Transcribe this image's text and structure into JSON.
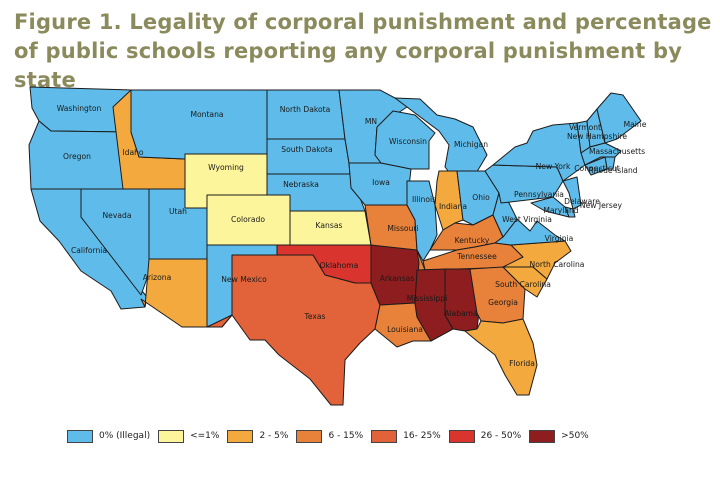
{
  "title": "Figure 1. Legality of corporal punishment and percentage of public schools reporting any corporal punishment by state",
  "legend": [
    {
      "key": "0",
      "label": "0% (Illegal)",
      "color": "#5fbcea"
    },
    {
      "key": "1",
      "label": "<=1%",
      "color": "#fdf59c"
    },
    {
      "key": "2",
      "label": "2 - 5%",
      "color": "#f3a93e"
    },
    {
      "key": "3",
      "label": "6 - 15%",
      "color": "#e8823a"
    },
    {
      "key": "4",
      "label": "16- 25%",
      "color": "#e2633a"
    },
    {
      "key": "5",
      "label": "26 - 50%",
      "color": "#d9342e"
    },
    {
      "key": "6",
      "label": ">50%",
      "color": "#8e1d1f"
    }
  ],
  "states": [
    {
      "id": "WA",
      "label": "Washington",
      "cat": "0"
    },
    {
      "id": "OR",
      "label": "Oregon",
      "cat": "0"
    },
    {
      "id": "CA",
      "label": "California",
      "cat": "0"
    },
    {
      "id": "NV",
      "label": "Nevada",
      "cat": "0"
    },
    {
      "id": "ID",
      "label": "Idaho",
      "cat": "2"
    },
    {
      "id": "MT",
      "label": "Montana",
      "cat": "0"
    },
    {
      "id": "WY",
      "label": "Wyoming",
      "cat": "1"
    },
    {
      "id": "UT",
      "label": "Utah",
      "cat": "0"
    },
    {
      "id": "CO",
      "label": "Colorado",
      "cat": "1"
    },
    {
      "id": "AZ",
      "label": "Arizona",
      "cat": "2"
    },
    {
      "id": "NM",
      "label": "New Mexico",
      "cat": "0"
    },
    {
      "id": "ND",
      "label": "North Dakota",
      "cat": "0"
    },
    {
      "id": "SD",
      "label": "South Dakota",
      "cat": "0"
    },
    {
      "id": "NE",
      "label": "Nebraska",
      "cat": "0"
    },
    {
      "id": "KS",
      "label": "Kansas",
      "cat": "1"
    },
    {
      "id": "OK",
      "label": "Oklahoma",
      "cat": "5"
    },
    {
      "id": "TX",
      "label": "Texas",
      "cat": "4"
    },
    {
      "id": "MN",
      "label": "MN",
      "cat": "0"
    },
    {
      "id": "IA",
      "label": "Iowa",
      "cat": "0"
    },
    {
      "id": "MO",
      "label": "Missouri",
      "cat": "3"
    },
    {
      "id": "AR",
      "label": "Arkansas",
      "cat": "6"
    },
    {
      "id": "LA",
      "label": "Louisiana",
      "cat": "3"
    },
    {
      "id": "WI",
      "label": "Wisconsin",
      "cat": "0"
    },
    {
      "id": "IL",
      "label": "Illinois",
      "cat": "0"
    },
    {
      "id": "MI",
      "label": "Michigan",
      "cat": "0"
    },
    {
      "id": "IN",
      "label": "Indiana",
      "cat": "2"
    },
    {
      "id": "OH",
      "label": "Ohio",
      "cat": "0"
    },
    {
      "id": "KY",
      "label": "Kentucky",
      "cat": "3"
    },
    {
      "id": "TN",
      "label": "Tennessee",
      "cat": "3"
    },
    {
      "id": "MS",
      "label": "Mississippi",
      "cat": "6"
    },
    {
      "id": "AL",
      "label": "Alabama",
      "cat": "6"
    },
    {
      "id": "GA",
      "label": "Georgia",
      "cat": "3"
    },
    {
      "id": "FL",
      "label": "Florida",
      "cat": "2"
    },
    {
      "id": "SC",
      "label": "South Carolina",
      "cat": "2"
    },
    {
      "id": "NC",
      "label": "North Carolina",
      "cat": "2"
    },
    {
      "id": "VA",
      "label": "Virginia",
      "cat": "0"
    },
    {
      "id": "WV",
      "label": "West Virginia",
      "cat": "0"
    },
    {
      "id": "PA",
      "label": "Pennsylvania",
      "cat": "0"
    },
    {
      "id": "NY",
      "label": "New York",
      "cat": "0"
    },
    {
      "id": "VT",
      "label": "Vermont",
      "cat": "0"
    },
    {
      "id": "NH",
      "label": "New Hampshire",
      "cat": "0"
    },
    {
      "id": "ME",
      "label": "Maine",
      "cat": "0"
    },
    {
      "id": "MA",
      "label": "Massachusetts",
      "cat": "0"
    },
    {
      "id": "RI",
      "label": "Rhode Island",
      "cat": "0"
    },
    {
      "id": "CT",
      "label": "Connecticut",
      "cat": "0"
    },
    {
      "id": "NJ",
      "label": "New Jersey",
      "cat": "0"
    },
    {
      "id": "DE",
      "label": "Delaware",
      "cat": "0"
    },
    {
      "id": "MD",
      "label": "Maryland",
      "cat": "0"
    }
  ]
}
